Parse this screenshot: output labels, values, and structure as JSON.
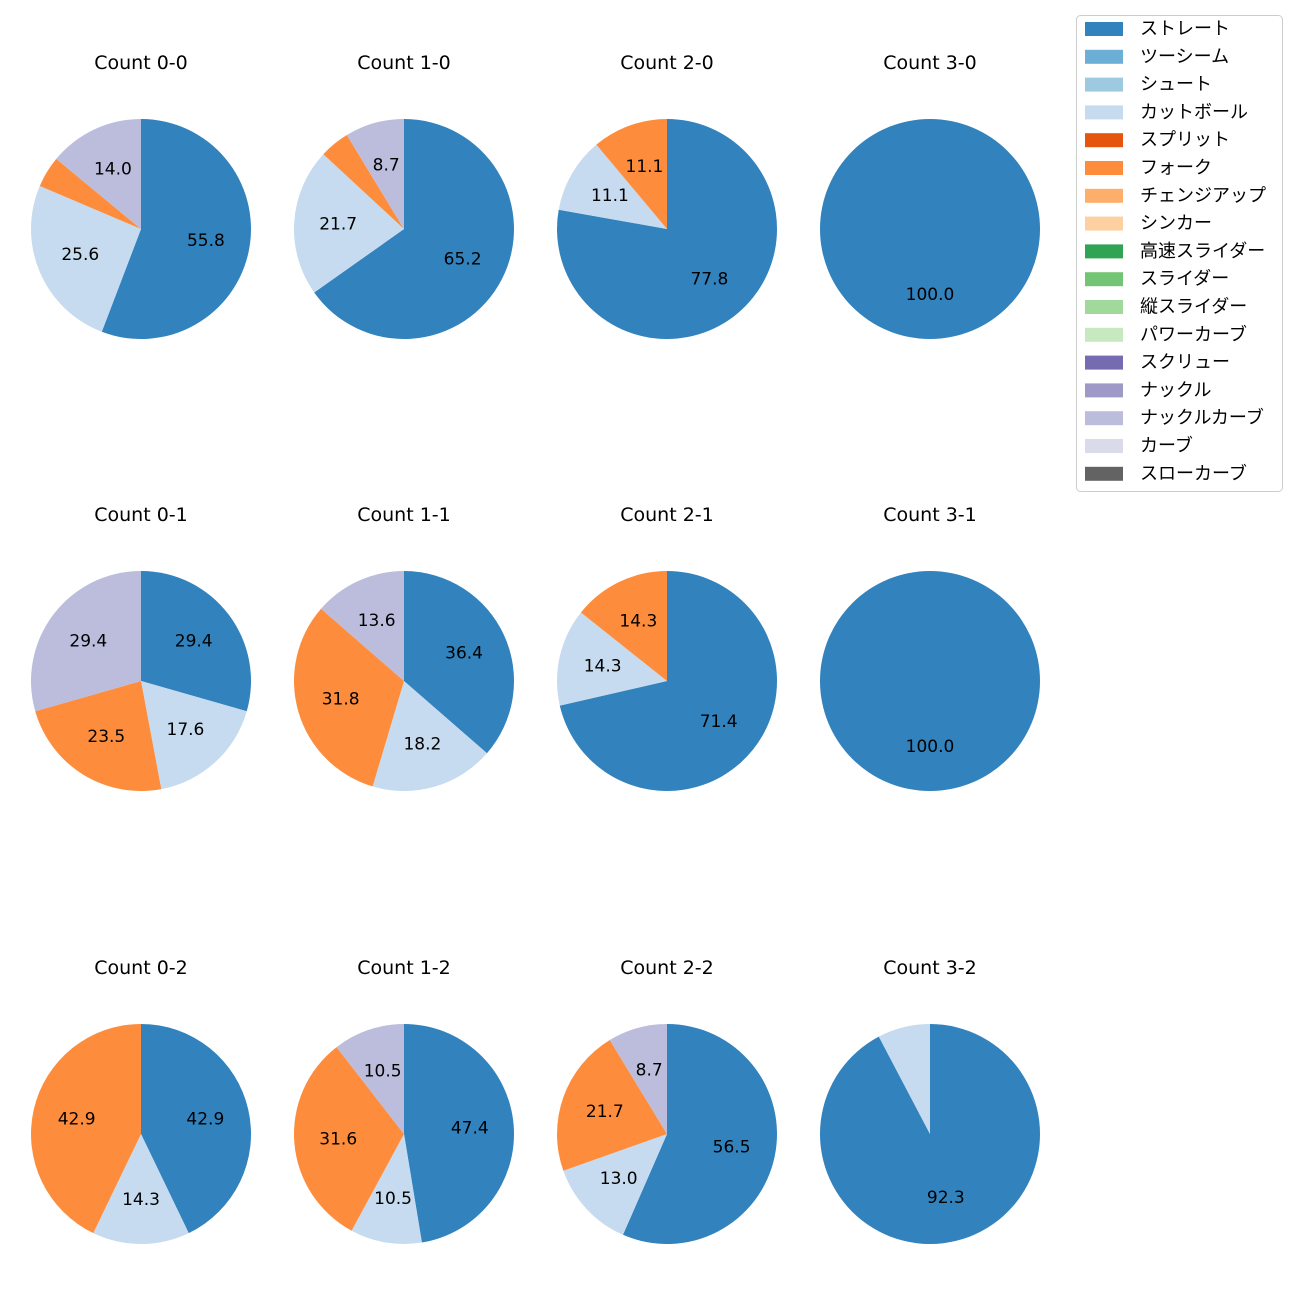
{
  "chart_data": {
    "type": "pie",
    "legend": {
      "placement": "top-right",
      "entries": [
        {
          "label": "ストレート",
          "color": "#3182bd"
        },
        {
          "label": "ツーシーム",
          "color": "#6baed6"
        },
        {
          "label": "シュート",
          "color": "#9ecae1"
        },
        {
          "label": "カットボール",
          "color": "#c6dbef"
        },
        {
          "label": "スプリット",
          "color": "#e6550d"
        },
        {
          "label": "フォーク",
          "color": "#fd8d3c"
        },
        {
          "label": "チェンジアップ",
          "color": "#fdae6b"
        },
        {
          "label": "シンカー",
          "color": "#fdd0a2"
        },
        {
          "label": "高速スライダー",
          "color": "#31a354"
        },
        {
          "label": "スライダー",
          "color": "#74c476"
        },
        {
          "label": "縦スライダー",
          "color": "#a1d99b"
        },
        {
          "label": "パワーカーブ",
          "color": "#c7e9c0"
        },
        {
          "label": "スクリュー",
          "color": "#756bb1"
        },
        {
          "label": "ナックル",
          "color": "#9e9ac8"
        },
        {
          "label": "ナックルカーブ",
          "color": "#bcbddc"
        },
        {
          "label": "カーブ",
          "color": "#dadaeb"
        },
        {
          "label": "スローカーブ",
          "color": "#636363"
        }
      ]
    },
    "pies": [
      {
        "title": "Count 0-0",
        "slices": [
          {
            "pitch": "ストレート",
            "value": 55.8,
            "label": "55.8"
          },
          {
            "pitch": "カットボール",
            "value": 25.6,
            "label": "25.6"
          },
          {
            "pitch": "フォーク",
            "value": 4.6,
            "label": ""
          },
          {
            "pitch": "ナックルカーブ",
            "value": 14.0,
            "label": "14.0"
          }
        ]
      },
      {
        "title": "Count 1-0",
        "slices": [
          {
            "pitch": "ストレート",
            "value": 65.2,
            "label": "65.2"
          },
          {
            "pitch": "カットボール",
            "value": 21.7,
            "label": "21.7"
          },
          {
            "pitch": "フォーク",
            "value": 4.4,
            "label": ""
          },
          {
            "pitch": "ナックルカーブ",
            "value": 8.7,
            "label": "8.7"
          }
        ]
      },
      {
        "title": "Count 2-0",
        "slices": [
          {
            "pitch": "ストレート",
            "value": 77.8,
            "label": "77.8"
          },
          {
            "pitch": "カットボール",
            "value": 11.1,
            "label": "11.1"
          },
          {
            "pitch": "フォーク",
            "value": 11.1,
            "label": "11.1"
          }
        ]
      },
      {
        "title": "Count 3-0",
        "slices": [
          {
            "pitch": "ストレート",
            "value": 100.0,
            "label": "100.0"
          }
        ]
      },
      {
        "title": "Count 0-1",
        "slices": [
          {
            "pitch": "ストレート",
            "value": 29.4,
            "label": "29.4"
          },
          {
            "pitch": "カットボール",
            "value": 17.6,
            "label": "17.6"
          },
          {
            "pitch": "フォーク",
            "value": 23.5,
            "label": "23.5"
          },
          {
            "pitch": "ナックルカーブ",
            "value": 29.4,
            "label": "29.4"
          }
        ]
      },
      {
        "title": "Count 1-1",
        "slices": [
          {
            "pitch": "ストレート",
            "value": 36.4,
            "label": "36.4"
          },
          {
            "pitch": "カットボール",
            "value": 18.2,
            "label": "18.2"
          },
          {
            "pitch": "フォーク",
            "value": 31.8,
            "label": "31.8"
          },
          {
            "pitch": "ナックルカーブ",
            "value": 13.6,
            "label": "13.6"
          }
        ]
      },
      {
        "title": "Count 2-1",
        "slices": [
          {
            "pitch": "ストレート",
            "value": 71.4,
            "label": "71.4"
          },
          {
            "pitch": "カットボール",
            "value": 14.3,
            "label": "14.3"
          },
          {
            "pitch": "フォーク",
            "value": 14.3,
            "label": "14.3"
          }
        ]
      },
      {
        "title": "Count 3-1",
        "slices": [
          {
            "pitch": "ストレート",
            "value": 100.0,
            "label": "100.0"
          }
        ]
      },
      {
        "title": "Count 0-2",
        "slices": [
          {
            "pitch": "ストレート",
            "value": 42.9,
            "label": "42.9"
          },
          {
            "pitch": "カットボール",
            "value": 14.3,
            "label": "14.3"
          },
          {
            "pitch": "フォーク",
            "value": 42.9,
            "label": "42.9"
          }
        ]
      },
      {
        "title": "Count 1-2",
        "slices": [
          {
            "pitch": "ストレート",
            "value": 47.4,
            "label": "47.4"
          },
          {
            "pitch": "カットボール",
            "value": 10.5,
            "label": "10.5"
          },
          {
            "pitch": "フォーク",
            "value": 31.6,
            "label": "31.6"
          },
          {
            "pitch": "ナックルカーブ",
            "value": 10.5,
            "label": "10.5"
          }
        ]
      },
      {
        "title": "Count 2-2",
        "slices": [
          {
            "pitch": "ストレート",
            "value": 56.5,
            "label": "56.5"
          },
          {
            "pitch": "カットボール",
            "value": 13.0,
            "label": "13.0"
          },
          {
            "pitch": "フォーク",
            "value": 21.7,
            "label": "21.7"
          },
          {
            "pitch": "ナックルカーブ",
            "value": 8.7,
            "label": "8.7"
          }
        ]
      },
      {
        "title": "Count 3-2",
        "slices": [
          {
            "pitch": "ストレート",
            "value": 92.3,
            "label": "92.3"
          },
          {
            "pitch": "カットボール",
            "value": 7.7,
            "label": ""
          }
        ]
      }
    ]
  }
}
